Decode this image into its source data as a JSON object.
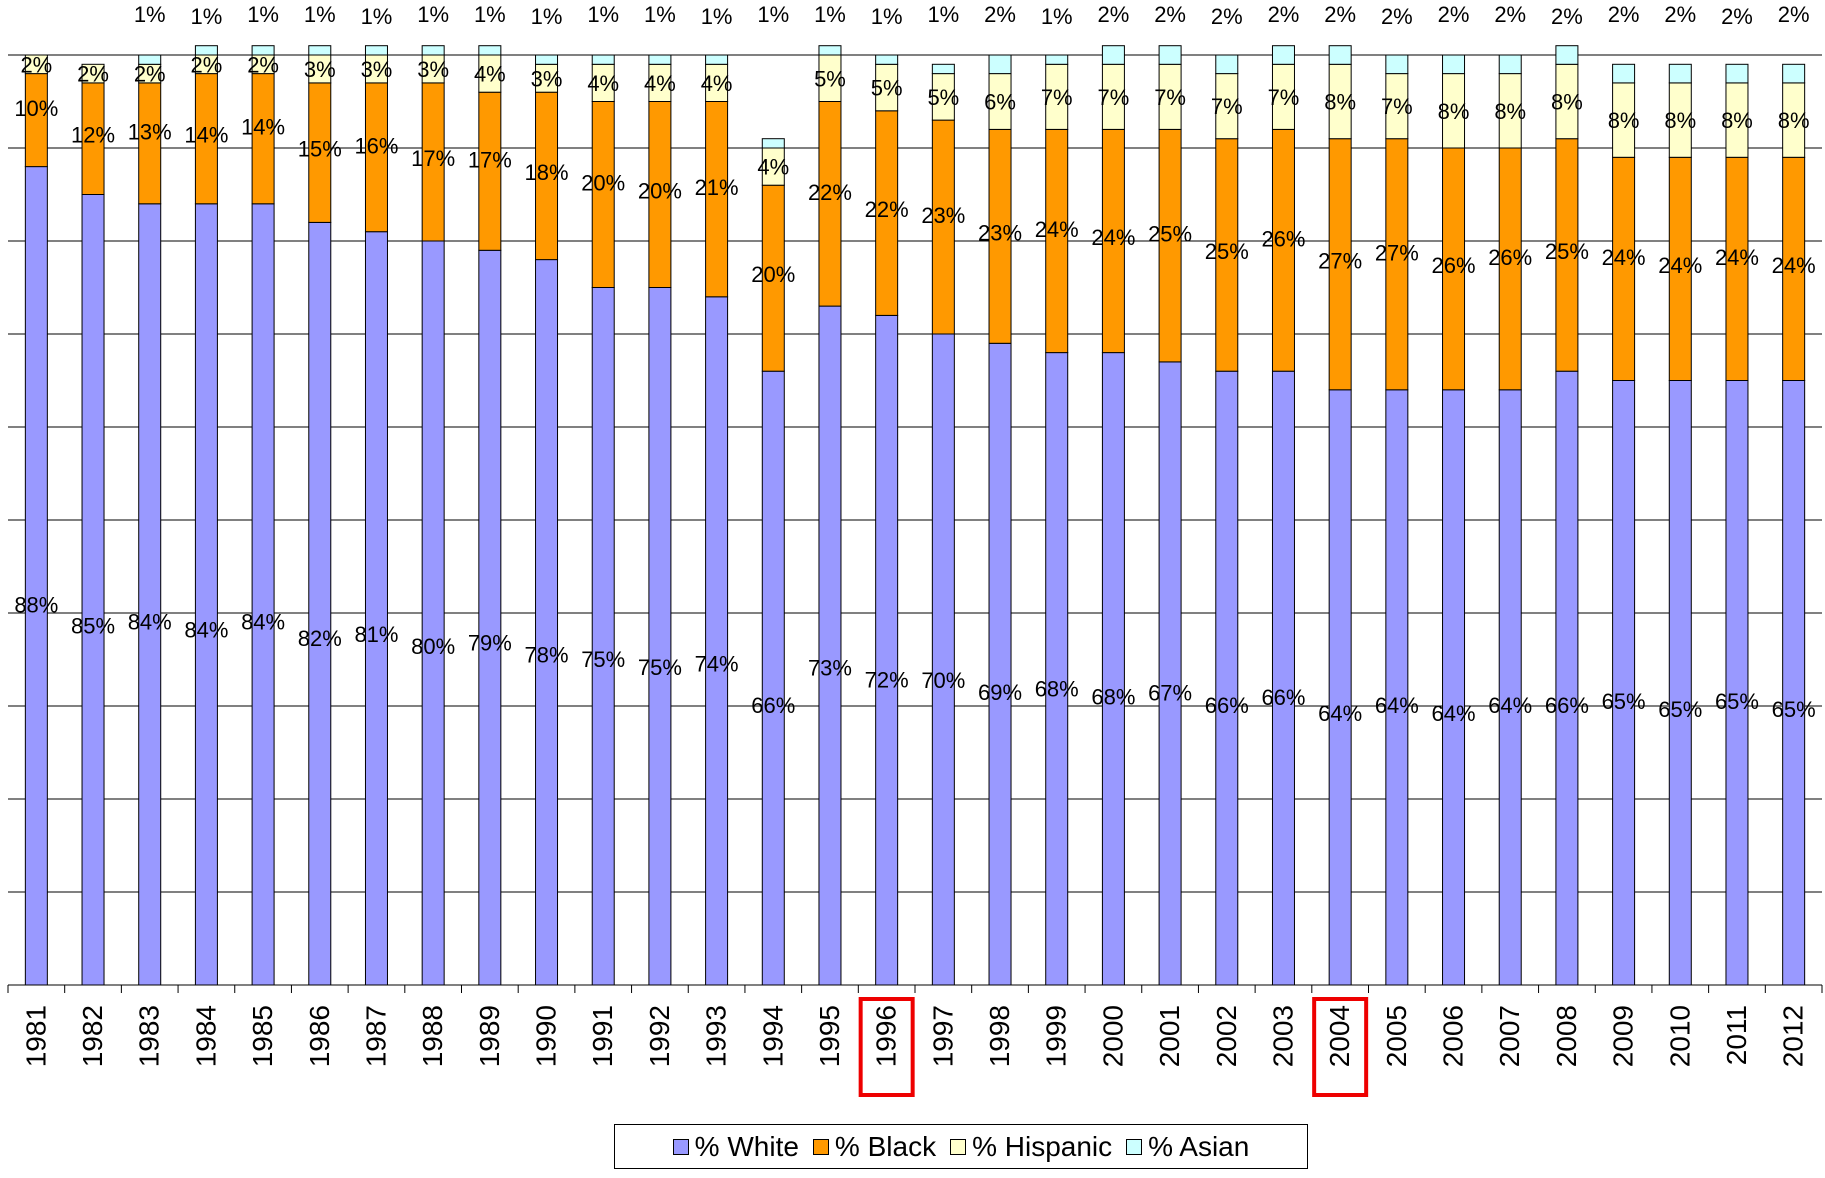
{
  "chart_data": {
    "type": "bar",
    "stacked": true,
    "categories": [
      "1981",
      "1982",
      "1983",
      "1984",
      "1985",
      "1986",
      "1987",
      "1988",
      "1989",
      "1990",
      "1991",
      "1992",
      "1993",
      "1994",
      "1995",
      "1996",
      "1997",
      "1998",
      "1999",
      "2000",
      "2001",
      "2002",
      "2003",
      "2004",
      "2005",
      "2006",
      "2007",
      "2008",
      "2009",
      "2010",
      "2011",
      "2012"
    ],
    "highlighted_categories": [
      "1996",
      "2004"
    ],
    "ylim": [
      0,
      100
    ],
    "grid": true,
    "legend_position": "bottom",
    "series": [
      {
        "name": "% White",
        "color": "#9999ff",
        "values": [
          88,
          85,
          84,
          84,
          84,
          82,
          81,
          80,
          79,
          78,
          75,
          75,
          74,
          66,
          73,
          72,
          70,
          69,
          68,
          68,
          67,
          66,
          66,
          64,
          64,
          64,
          64,
          66,
          65,
          65,
          65,
          65
        ],
        "labels": [
          "88%",
          "85%",
          "84%",
          "84%",
          "84%",
          "82%",
          "81%",
          "80%",
          "79%",
          "78%",
          "75%",
          "75%",
          "74%",
          "66%",
          "73%",
          "72%",
          "70%",
          "69%",
          "68%",
          "68%",
          "67%",
          "66%",
          "66%",
          "64%",
          "64%",
          "64%",
          "64%",
          "66%",
          "65%",
          "65%",
          "65%",
          "65%"
        ]
      },
      {
        "name": "% Black",
        "color": "#ff9900",
        "values": [
          10,
          12,
          13,
          14,
          14,
          15,
          16,
          17,
          17,
          18,
          20,
          20,
          21,
          20,
          22,
          22,
          23,
          23,
          24,
          24,
          25,
          25,
          26,
          27,
          27,
          26,
          26,
          25,
          24,
          24,
          24,
          24
        ],
        "labels": [
          "10%",
          "12%",
          "13%",
          "14%",
          "14%",
          "15%",
          "16%",
          "17%",
          "17%",
          "18%",
          "20%",
          "20%",
          "21%",
          "20%",
          "22%",
          "22%",
          "23%",
          "23%",
          "24%",
          "24%",
          "25%",
          "25%",
          "26%",
          "27%",
          "27%",
          "26%",
          "26%",
          "25%",
          "24%",
          "24%",
          "24%",
          "24%"
        ]
      },
      {
        "name": "% Hispanic",
        "color": "#ffffcc",
        "values": [
          2,
          2,
          2,
          2,
          2,
          3,
          3,
          3,
          4,
          3,
          4,
          4,
          4,
          4,
          5,
          5,
          5,
          6,
          7,
          7,
          7,
          7,
          7,
          8,
          7,
          8,
          8,
          8,
          8,
          8,
          8,
          8
        ],
        "labels": [
          "2%",
          "2%",
          "2%",
          "2%",
          "2%",
          "3%",
          "3%",
          "3%",
          "4%",
          "3%",
          "4%",
          "4%",
          "4%",
          "4%",
          "5%",
          "5%",
          "5%",
          "6%",
          "7%",
          "7%",
          "7%",
          "7%",
          "7%",
          "8%",
          "7%",
          "8%",
          "8%",
          "8%",
          "8%",
          "8%",
          "8%",
          "8%"
        ]
      },
      {
        "name": "% Asian",
        "color": "#ccffff",
        "values": [
          0,
          0,
          1,
          1,
          1,
          1,
          1,
          1,
          1,
          1,
          1,
          1,
          1,
          1,
          1,
          1,
          1,
          2,
          1,
          2,
          2,
          2,
          2,
          2,
          2,
          2,
          2,
          2,
          2,
          2,
          2,
          2
        ],
        "labels": [
          "",
          "",
          "1%",
          "1%",
          "1%",
          "1%",
          "1%",
          "1%",
          "1%",
          "1%",
          "1%",
          "1%",
          "1%",
          "1%",
          "1%",
          "1%",
          "1%",
          "2%",
          "1%",
          "2%",
          "2%",
          "2%",
          "2%",
          "2%",
          "2%",
          "2%",
          "2%",
          "2%",
          "2%",
          "2%",
          "2%",
          "2%"
        ]
      }
    ]
  }
}
